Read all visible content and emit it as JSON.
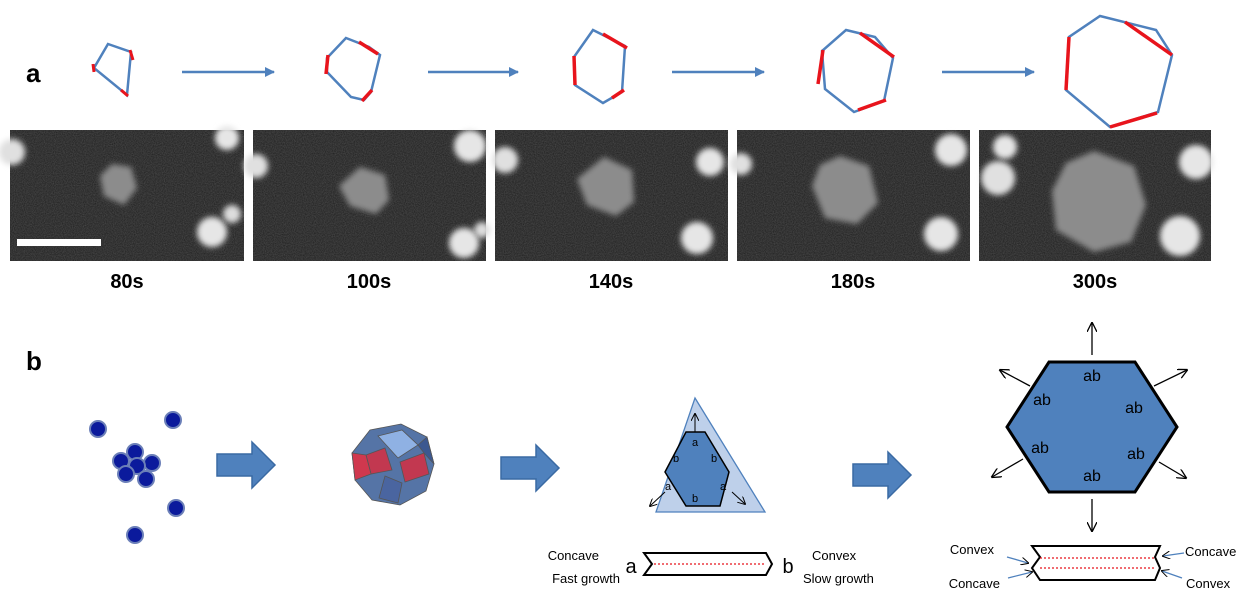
{
  "panel_a": {
    "label": "a",
    "frames": [
      {
        "time": "80s"
      },
      {
        "time": "100s"
      },
      {
        "time": "140s"
      },
      {
        "time": "180s"
      },
      {
        "time": "300s"
      }
    ]
  },
  "panel_b": {
    "label": "b",
    "triangle_labels": {
      "a": "a",
      "b": "b"
    },
    "hex_facet_label": "ab",
    "left_plate": {
      "concave": "Concave",
      "fast_growth": "Fast growth",
      "end_a": "a",
      "end_b": "b",
      "convex": "Convex",
      "slow_growth": "Slow growth"
    },
    "right_plate": {
      "convex_tl": "Convex",
      "concave_tr": "Concave",
      "concave_bl": "Concave",
      "convex_br": "Convex"
    }
  },
  "colors": {
    "blue": "#4f81bd",
    "red": "#e8141c",
    "dark_blue": "#0b1a9c",
    "light_blue": "#a9c0e0",
    "arrow_fill": "#4f81bd",
    "arrow_edge": "#3a6aa3"
  }
}
